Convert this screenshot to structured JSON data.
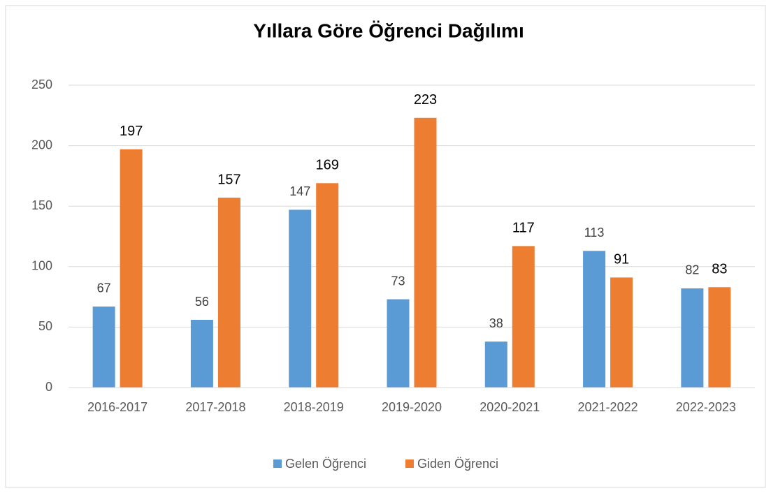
{
  "chart_data": {
    "type": "bar",
    "title": "Yıllara Göre Öğrenci Dağılımı",
    "categories": [
      "2016-2017",
      "2017-2018",
      "2018-2019",
      "2019-2020",
      "2020-2021",
      "2021-2022",
      "2022-2023"
    ],
    "series": [
      {
        "name": "Gelen Öğrenci",
        "color": "#5b9bd5",
        "values": [
          67,
          56,
          147,
          73,
          38,
          113,
          82
        ]
      },
      {
        "name": "Giden Öğrenci",
        "color": "#ed7d31",
        "values": [
          197,
          157,
          169,
          223,
          117,
          91,
          83
        ]
      }
    ],
    "ylim": [
      0,
      250
    ],
    "yticks": [
      0,
      50,
      100,
      150,
      200,
      250
    ],
    "grid": true,
    "legend": "bottom"
  }
}
